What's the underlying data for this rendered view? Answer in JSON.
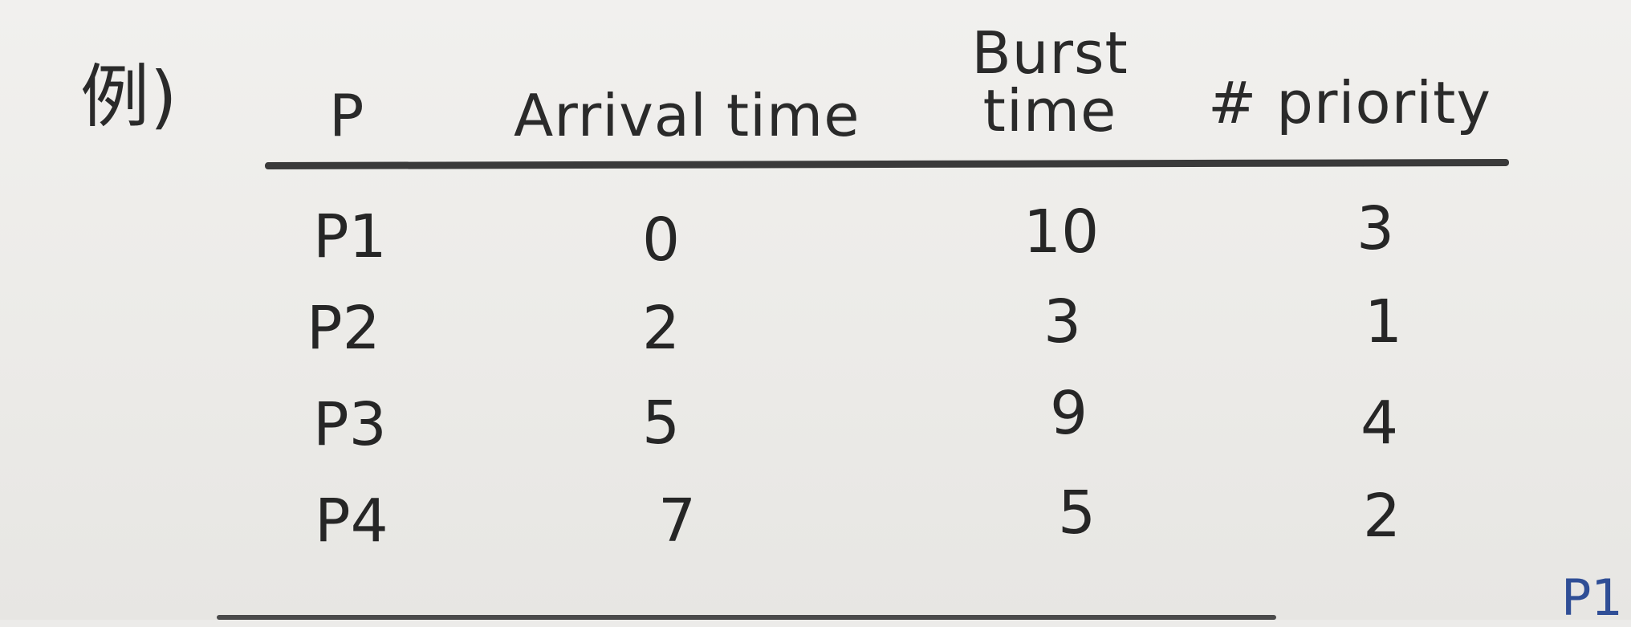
{
  "example_mark": "例)",
  "table": {
    "headers": {
      "process": "P",
      "arrival": "Arrival time",
      "burst_line1": "Burst",
      "burst_line2": "time",
      "priority": "# priority"
    },
    "rows": [
      {
        "process": "P1",
        "arrival": "0",
        "burst": "10",
        "priority": "3"
      },
      {
        "process": "P2",
        "arrival": "2",
        "burst": "3",
        "priority": "1"
      },
      {
        "process": "P3",
        "arrival": "5",
        "burst": "9",
        "priority": "4"
      },
      {
        "process": "P4",
        "arrival": "7",
        "burst": "5",
        "priority": "2"
      }
    ]
  },
  "corner_note": "P1"
}
